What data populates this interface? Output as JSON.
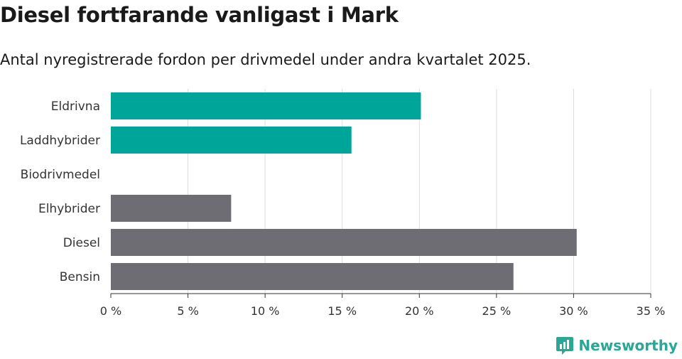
{
  "title": "Diesel fortfarande vanligast i Mark",
  "subtitle": "Antal nyregistrerade fordon per drivmedel under andra kvartalet 2025.",
  "brand": {
    "name": "Newsworthy",
    "icon": "newsworthy-logo-icon"
  },
  "chart_data": {
    "type": "bar",
    "orientation": "horizontal",
    "categories": [
      "Eldrivna",
      "Laddhybrider",
      "Biodrivmedel",
      "Elhybrider",
      "Diesel",
      "Bensin"
    ],
    "values": [
      20.1,
      15.6,
      0,
      7.8,
      30.2,
      26.1
    ],
    "colors": [
      "#00a59a",
      "#00a59a",
      "#00a59a",
      "#6e6d73",
      "#6e6d73",
      "#6e6d73"
    ],
    "xlim": [
      0,
      35
    ],
    "xticks": [
      0,
      5,
      10,
      15,
      20,
      25,
      30,
      35
    ],
    "tick_suffix": " %",
    "grid": true,
    "xlabel": "",
    "ylabel": ""
  }
}
